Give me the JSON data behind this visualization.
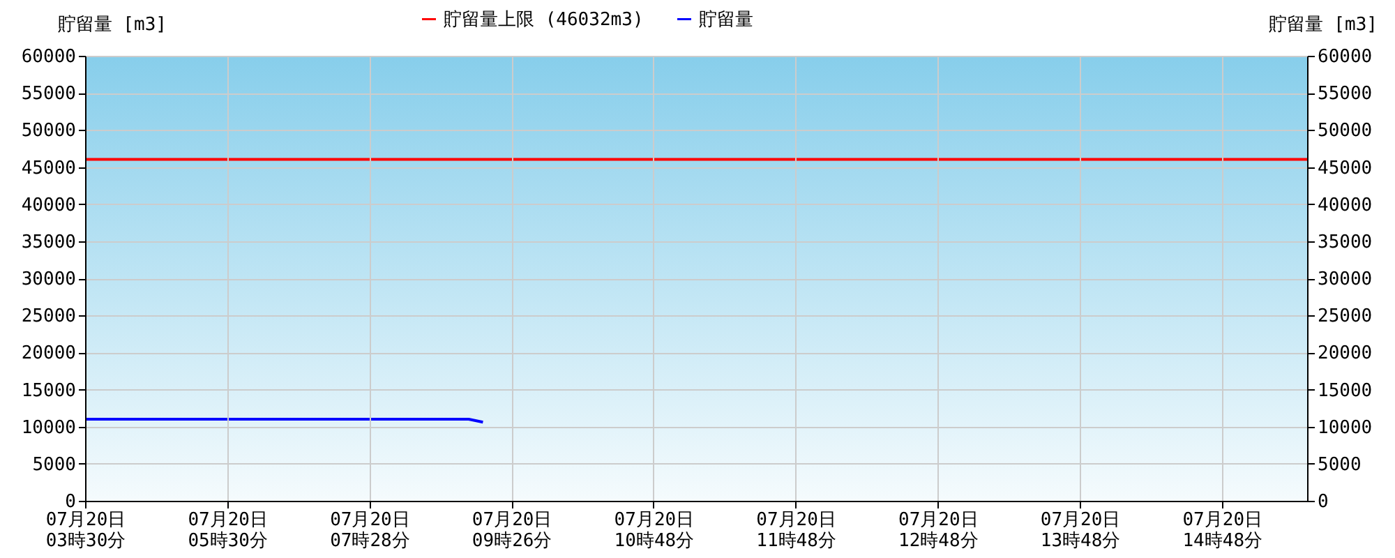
{
  "chart_data": {
    "type": "line",
    "ylabel": "貯留量 [m3]",
    "y2label": "貯留量 [m3]",
    "categories": [
      "07月20日\n03時30分",
      null,
      null,
      null,
      null,
      null,
      null,
      null,
      null,
      null,
      "07月20日\n05時30分",
      null,
      null,
      null,
      null,
      null,
      null,
      null,
      null,
      null,
      "07月20日\n07時28分",
      null,
      null,
      null,
      null,
      null,
      null,
      null,
      null,
      null,
      "07月20日\n09時26分",
      null,
      null,
      null,
      null,
      null,
      null,
      null,
      null,
      null,
      "07月20日\n10時48分",
      null,
      null,
      null,
      null,
      null,
      null,
      null,
      null,
      null,
      "07月20日\n11時48分",
      null,
      null,
      null,
      null,
      null,
      null,
      null,
      null,
      null,
      "07月20日\n12時48分",
      null,
      null,
      null,
      null,
      null,
      null,
      null,
      null,
      null,
      "07月20日\n13時48分",
      null,
      null,
      null,
      null,
      null,
      null,
      null,
      null,
      null,
      "07月20日\n14時48分",
      null,
      null,
      null,
      null,
      null,
      null
    ],
    "ylim": [
      0,
      60000
    ],
    "yticks": [
      0,
      5000,
      10000,
      15000,
      20000,
      25000,
      30000,
      35000,
      40000,
      45000,
      50000,
      55000,
      60000
    ],
    "y2lim": [
      0,
      60000
    ],
    "y2ticks": [
      0,
      5000,
      10000,
      15000,
      20000,
      25000,
      30000,
      35000,
      40000,
      45000,
      50000,
      55000,
      60000
    ],
    "series": [
      {
        "name": "貯留量上限 (46032m3)",
        "color": "#ff0000",
        "axis": "y2",
        "values": [
          46032,
          46032,
          46032,
          46032,
          46032,
          46032,
          46032,
          46032,
          46032,
          46032,
          46032,
          46032,
          46032,
          46032,
          46032,
          46032,
          46032,
          46032,
          46032,
          46032,
          46032,
          46032,
          46032,
          46032,
          46032,
          46032,
          46032,
          46032,
          46032,
          46032,
          46032,
          46032,
          46032,
          46032,
          46032,
          46032,
          46032,
          46032,
          46032,
          46032,
          46032,
          46032,
          46032,
          46032,
          46032,
          46032,
          46032,
          46032,
          46032,
          46032,
          46032,
          46032,
          46032,
          46032,
          46032,
          46032,
          46032,
          46032,
          46032,
          46032,
          46032,
          46032,
          46032,
          46032,
          46032,
          46032,
          46032,
          46032,
          46032,
          46032,
          46032,
          46032,
          46032,
          46032,
          46032,
          46032,
          46032,
          46032,
          46032,
          46032,
          46032,
          46032,
          46032,
          46032,
          46032,
          46032,
          46032
        ]
      },
      {
        "name": "貯留量",
        "color": "#0000ff",
        "values": [
          11000,
          11000,
          11000,
          11000,
          11000,
          11000,
          11000,
          11000,
          11000,
          11000,
          11000,
          11000,
          11000,
          11000,
          11000,
          11000,
          11000,
          11000,
          11000,
          11000,
          11000,
          11000,
          11000,
          11000,
          11000,
          11000,
          11000,
          11000,
          10600,
          null,
          null,
          null,
          null,
          null,
          null,
          null,
          null,
          null,
          null,
          null,
          null,
          null,
          null,
          null,
          null,
          null,
          null,
          null,
          null,
          null,
          null,
          null,
          null,
          null,
          null,
          null,
          null,
          null,
          null,
          null,
          null,
          null,
          null,
          null,
          null,
          null,
          null,
          null,
          null,
          null,
          null,
          null,
          null,
          null,
          null,
          null,
          null,
          null,
          null,
          null,
          null,
          null,
          null,
          null,
          null,
          null,
          null
        ]
      }
    ],
    "grid": true,
    "legend": "top",
    "marker": "none",
    "line_style": "solid"
  }
}
